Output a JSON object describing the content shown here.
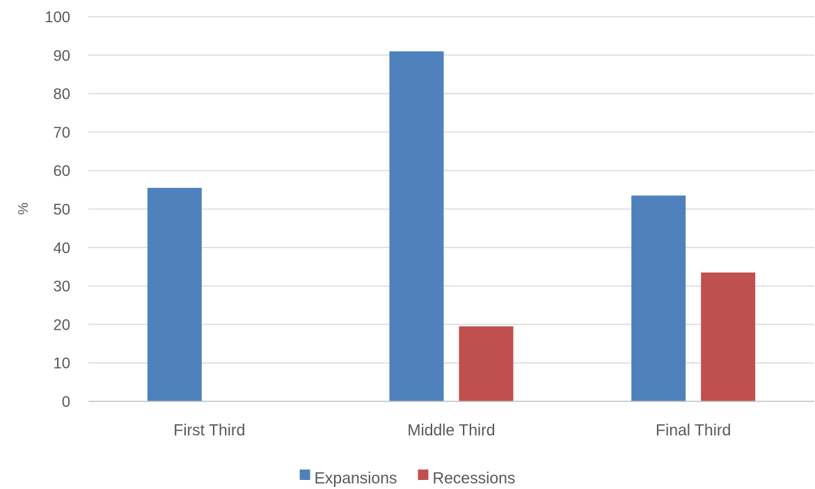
{
  "chart_data": {
    "type": "bar",
    "categories": [
      "First Third",
      "Middle Third",
      "Final Third"
    ],
    "series": [
      {
        "name": "Expansions",
        "values": [
          55.5,
          91,
          53.5
        ],
        "color": "#4f81bd"
      },
      {
        "name": "Recessions",
        "values": [
          0,
          19.5,
          33.5
        ],
        "color": "#c0504d"
      }
    ],
    "ylabel": "%",
    "ylim": [
      0,
      100
    ],
    "yticks": [
      0,
      10,
      20,
      30,
      40,
      50,
      60,
      70,
      80,
      90,
      100
    ],
    "grid": true,
    "legend_position": "bottom"
  }
}
